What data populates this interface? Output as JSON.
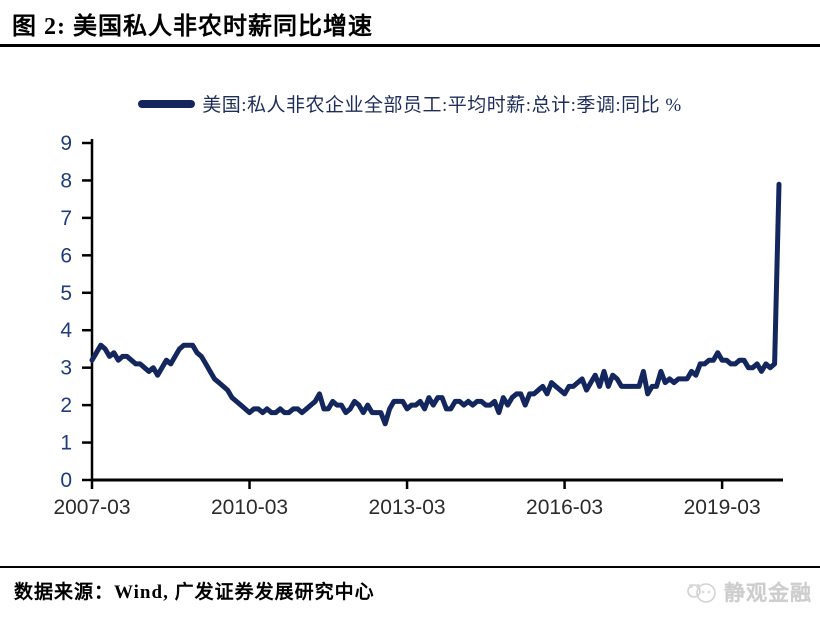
{
  "header": {
    "title": "图 2:  美国私人非农时薪同比增速"
  },
  "legend": {
    "label": "美国:私人非农企业全部员工:平均时薪:总计:季调:同比 %"
  },
  "chart_data": {
    "type": "line",
    "series_name": "美国:私人非农企业全部员工:平均时薪:总计:季调:同比 %",
    "frequency": "monthly",
    "x_start": "2007-03",
    "x_end": "2020-04",
    "x_tick_labels": [
      "2007-03",
      "2010-03",
      "2013-03",
      "2016-03",
      "2019-03"
    ],
    "x_tick_interval_months": 36,
    "y_ticks": [
      0,
      1,
      2,
      3,
      4,
      5,
      6,
      7,
      8,
      9
    ],
    "ylim": [
      0,
      9
    ],
    "grid": false,
    "legend_position": "top-center",
    "line_color": "#14265e",
    "axis_color": "#000000",
    "y_label_color": "#1f3d7a",
    "x_label_color": "#2b2b2b",
    "values": [
      3.2,
      3.4,
      3.6,
      3.5,
      3.3,
      3.4,
      3.2,
      3.3,
      3.3,
      3.2,
      3.1,
      3.1,
      3.0,
      2.9,
      3.0,
      2.8,
      3.0,
      3.2,
      3.1,
      3.3,
      3.5,
      3.6,
      3.6,
      3.6,
      3.4,
      3.3,
      3.1,
      2.9,
      2.7,
      2.6,
      2.5,
      2.4,
      2.2,
      2.1,
      2.0,
      1.9,
      1.8,
      1.9,
      1.9,
      1.8,
      1.9,
      1.8,
      1.8,
      1.9,
      1.8,
      1.8,
      1.9,
      1.9,
      1.8,
      1.9,
      2.0,
      2.1,
      2.3,
      1.9,
      1.9,
      2.1,
      2.0,
      2.0,
      1.8,
      1.9,
      2.1,
      2.0,
      1.8,
      2.0,
      1.8,
      1.8,
      1.8,
      1.5,
      1.9,
      2.1,
      2.1,
      2.1,
      1.9,
      2.0,
      2.0,
      2.1,
      1.9,
      2.2,
      2.0,
      2.2,
      2.2,
      1.9,
      1.9,
      2.1,
      2.1,
      2.0,
      2.1,
      2.0,
      2.1,
      2.1,
      2.0,
      2.0,
      2.1,
      1.8,
      2.2,
      2.0,
      2.2,
      2.3,
      2.3,
      2.0,
      2.3,
      2.3,
      2.4,
      2.5,
      2.3,
      2.6,
      2.5,
      2.4,
      2.3,
      2.5,
      2.5,
      2.6,
      2.7,
      2.4,
      2.6,
      2.8,
      2.5,
      2.9,
      2.5,
      2.8,
      2.7,
      2.5,
      2.5,
      2.5,
      2.5,
      2.5,
      2.9,
      2.3,
      2.5,
      2.5,
      2.9,
      2.6,
      2.7,
      2.6,
      2.7,
      2.7,
      2.7,
      2.9,
      2.8,
      3.1,
      3.1,
      3.2,
      3.2,
      3.4,
      3.2,
      3.2,
      3.1,
      3.1,
      3.2,
      3.2,
      3.0,
      3.0,
      3.1,
      2.9,
      3.1,
      3.0,
      3.1,
      7.9
    ]
  },
  "footer": {
    "source": "数据来源：Wind, 广发证券发展研究中心",
    "watermark": "静观金融"
  }
}
